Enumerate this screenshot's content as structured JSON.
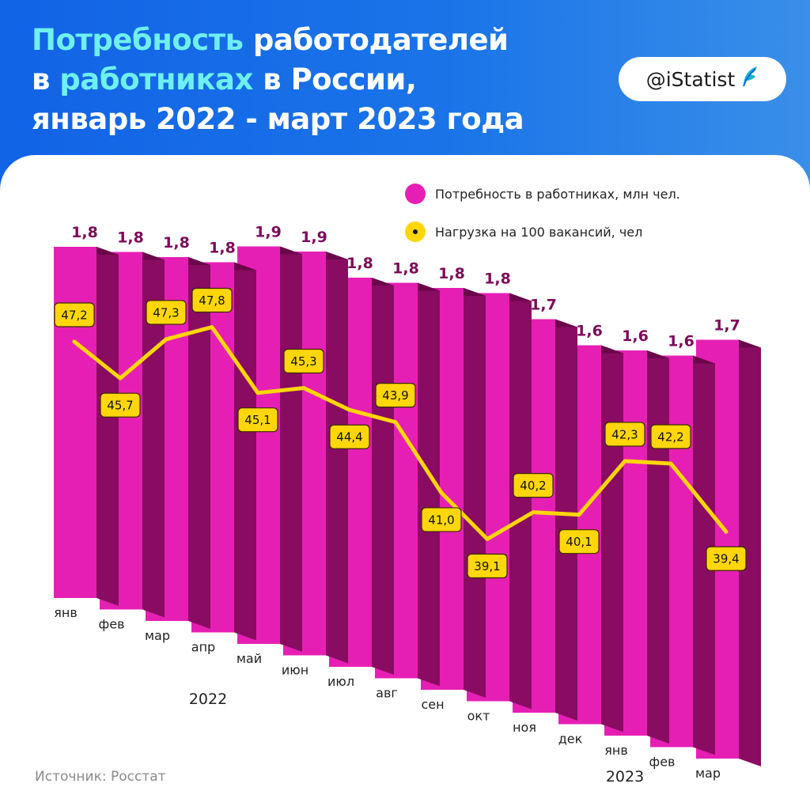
{
  "header": {
    "title_line1_hl": "Потребность",
    "title_line1_rest": " работодателей",
    "title_line2_pre": "в ",
    "title_line2_hl": "работниках",
    "title_line2_rest": " в России,",
    "title_line3": "январь 2022 - март 2023 года",
    "logo_text": "@iStatist",
    "logo_icon": "feather-icon"
  },
  "legend": {
    "bars": "Потребность в работниках, млн чел.",
    "line": "Нагрузка на 100 вакансий, чел"
  },
  "source": "Источник: Росстат",
  "colors": {
    "bar_front": "#e61fb4",
    "bar_side": "#8a0b62",
    "bar_top": "#6b064b",
    "line": "#ffd60a",
    "label_value": "#7d0a5a"
  },
  "chart_data": {
    "type": "bar",
    "categories": [
      "янв",
      "фев",
      "мар",
      "апр",
      "май",
      "июн",
      "июл",
      "авг",
      "сен",
      "окт",
      "ноя",
      "дек",
      "янв",
      "фев",
      "мар"
    ],
    "year_labels": [
      "2022",
      "2023"
    ],
    "bar_value_labels": [
      "1,8",
      "1,8",
      "1,8",
      "1,8",
      "1,9",
      "1,9",
      "1,8",
      "1,8",
      "1,8",
      "1,8",
      "1,7",
      "1,6",
      "1,6",
      "1,6",
      "1,7"
    ],
    "line_value_labels": [
      "47,2",
      "45,7",
      "47,3",
      "47,8",
      "45,1",
      "45,3",
      "44,4",
      "43,9",
      "41,0",
      "39,1",
      "40,2",
      "40,1",
      "42,3",
      "42,2",
      "39,4"
    ],
    "series": [
      {
        "name": "Потребность в работниках, млн чел.",
        "type": "bar",
        "values": [
          1.8,
          1.8,
          1.8,
          1.8,
          1.9,
          1.9,
          1.8,
          1.8,
          1.8,
          1.8,
          1.7,
          1.6,
          1.6,
          1.6,
          1.7
        ]
      },
      {
        "name": "Нагрузка на 100 вакансий, чел",
        "type": "line",
        "values": [
          47.2,
          45.7,
          47.3,
          47.8,
          45.1,
          45.3,
          44.4,
          43.9,
          41.0,
          39.1,
          40.2,
          40.1,
          42.3,
          42.2,
          39.4
        ]
      }
    ],
    "legend_position": "top-right",
    "grid": false
  }
}
